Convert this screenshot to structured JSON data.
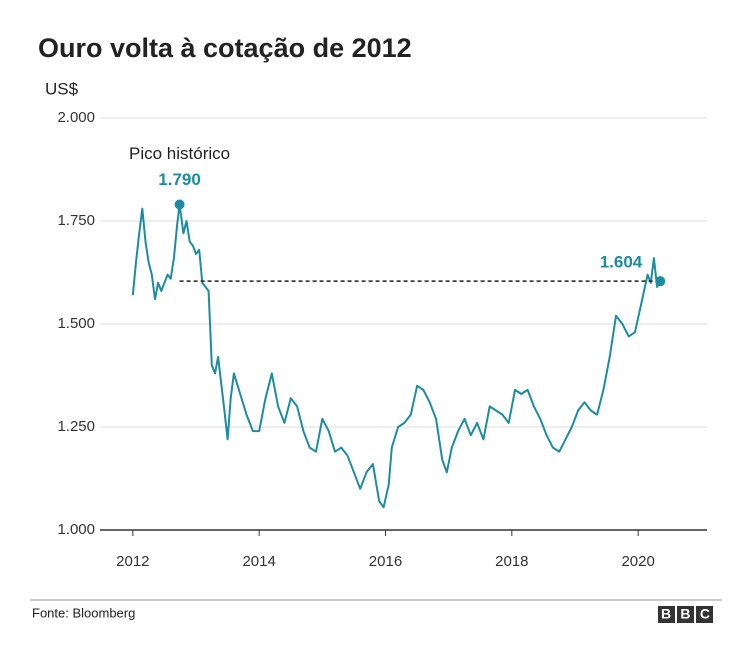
{
  "chart_data": {
    "type": "line",
    "title": "Ouro volta à cotação de 2012",
    "y_label": "US$",
    "source": "Fonte: Bloomberg",
    "logo": "BBC",
    "xlim": [
      2011.48,
      2021.09
    ],
    "xticks": [
      2012,
      2014,
      2016,
      2018,
      2020
    ],
    "ylim": [
      1000,
      2000
    ],
    "yticks": [
      {
        "value": 1000,
        "label": "1.000"
      },
      {
        "value": 1250,
        "label": "1.250"
      },
      {
        "value": 1500,
        "label": "1.500"
      },
      {
        "value": 1750,
        "label": "1.750"
      },
      {
        "value": 2000,
        "label": "2.000"
      }
    ],
    "grid": true,
    "series": [
      {
        "color": "#1d8ca1",
        "x": [
          2012.0,
          2012.05,
          2012.1,
          2012.15,
          2012.2,
          2012.25,
          2012.3,
          2012.35,
          2012.4,
          2012.45,
          2012.5,
          2012.55,
          2012.6,
          2012.65,
          2012.7,
          2012.74,
          2012.8,
          2012.85,
          2012.9,
          2012.95,
          2013.0,
          2013.05,
          2013.1,
          2013.15,
          2013.2,
          2013.25,
          2013.3,
          2013.35,
          2013.45,
          2013.5,
          2013.55,
          2013.6,
          2013.7,
          2013.8,
          2013.9,
          2014.0,
          2014.1,
          2014.2,
          2014.3,
          2014.4,
          2014.5,
          2014.6,
          2014.7,
          2014.8,
          2014.9,
          2015.0,
          2015.1,
          2015.2,
          2015.3,
          2015.4,
          2015.5,
          2015.6,
          2015.7,
          2015.8,
          2015.9,
          2015.97,
          2016.05,
          2016.1,
          2016.2,
          2016.3,
          2016.4,
          2016.5,
          2016.6,
          2016.7,
          2016.8,
          2016.9,
          2016.97,
          2017.05,
          2017.15,
          2017.25,
          2017.35,
          2017.45,
          2017.55,
          2017.65,
          2017.75,
          2017.85,
          2017.95,
          2018.05,
          2018.15,
          2018.25,
          2018.35,
          2018.45,
          2018.55,
          2018.65,
          2018.75,
          2018.85,
          2018.95,
          2019.05,
          2019.15,
          2019.25,
          2019.35,
          2019.45,
          2019.55,
          2019.65,
          2019.7,
          2019.75,
          2019.85,
          2019.95,
          2020.05,
          2020.15,
          2020.2,
          2020.25,
          2020.3,
          2020.35
        ],
        "values": [
          1570,
          1650,
          1720,
          1780,
          1700,
          1650,
          1620,
          1560,
          1600,
          1580,
          1600,
          1620,
          1610,
          1660,
          1740,
          1790,
          1720,
          1750,
          1700,
          1690,
          1670,
          1680,
          1600,
          1590,
          1580,
          1400,
          1380,
          1420,
          1290,
          1220,
          1320,
          1380,
          1330,
          1280,
          1240,
          1240,
          1320,
          1380,
          1300,
          1260,
          1320,
          1300,
          1240,
          1200,
          1190,
          1270,
          1240,
          1190,
          1200,
          1180,
          1140,
          1100,
          1140,
          1160,
          1070,
          1055,
          1110,
          1200,
          1250,
          1260,
          1280,
          1350,
          1340,
          1310,
          1270,
          1170,
          1140,
          1200,
          1240,
          1270,
          1230,
          1260,
          1220,
          1300,
          1290,
          1280,
          1260,
          1340,
          1330,
          1340,
          1300,
          1270,
          1230,
          1200,
          1190,
          1220,
          1250,
          1290,
          1310,
          1290,
          1280,
          1340,
          1420,
          1520,
          1510,
          1500,
          1470,
          1480,
          1550,
          1620,
          1600,
          1660,
          1590,
          1604
        ]
      }
    ],
    "annotations": [
      {
        "x": 2012.74,
        "y": 1790,
        "label": "1.790",
        "note": "Pico histórico"
      },
      {
        "x": 2020.35,
        "y": 1604,
        "label": "1.604"
      }
    ]
  }
}
